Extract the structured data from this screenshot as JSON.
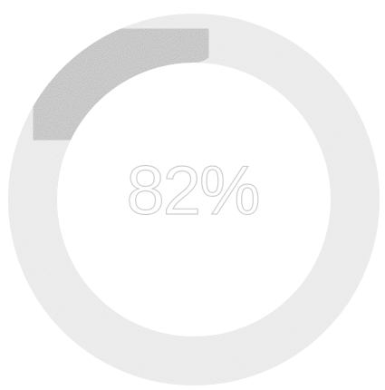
{
  "progress": {
    "value": 0.18,
    "label": "82%"
  },
  "colors": {
    "track": "#e6e6e6",
    "fill": "#b8b8b8",
    "text_outline": "#cfcfcf",
    "background": "#ffffff"
  }
}
